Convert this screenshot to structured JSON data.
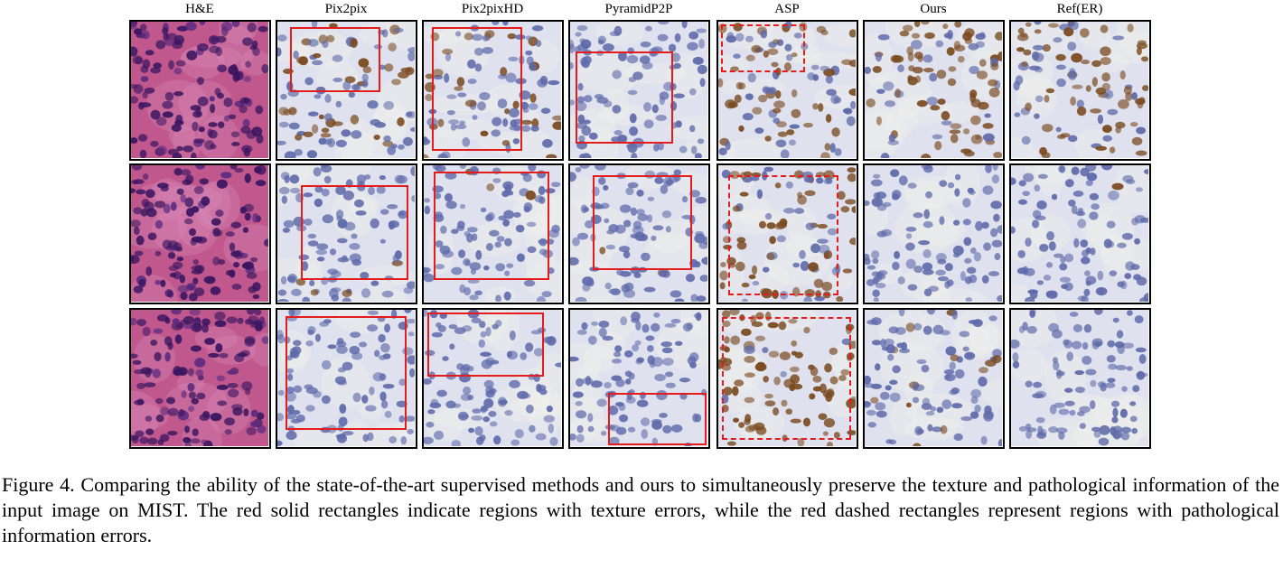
{
  "figure": {
    "columns": [
      "H&E",
      "Pix2pix",
      "Pix2pixHD",
      "PyramidP2P",
      "ASP",
      "Ours",
      "Ref(ER)"
    ],
    "caption": "Figure 4. Comparing the ability of the state-of-the-art supervised methods and ours to simultaneously preserve the texture and pathological information of the input image on MIST. The red solid rectangles indicate regions with texture errors, while the red dashed rectangles represent regions with pathological information errors.",
    "colors": {
      "solid_box": "#e41c1c",
      "he_background": "#c0588e",
      "he_nuclei": "#3a1560",
      "ihc_background": "#dfe2ee",
      "ihc_nuclei": "#5e6aaa",
      "dab_brown": "#7a4a20"
    }
  }
}
